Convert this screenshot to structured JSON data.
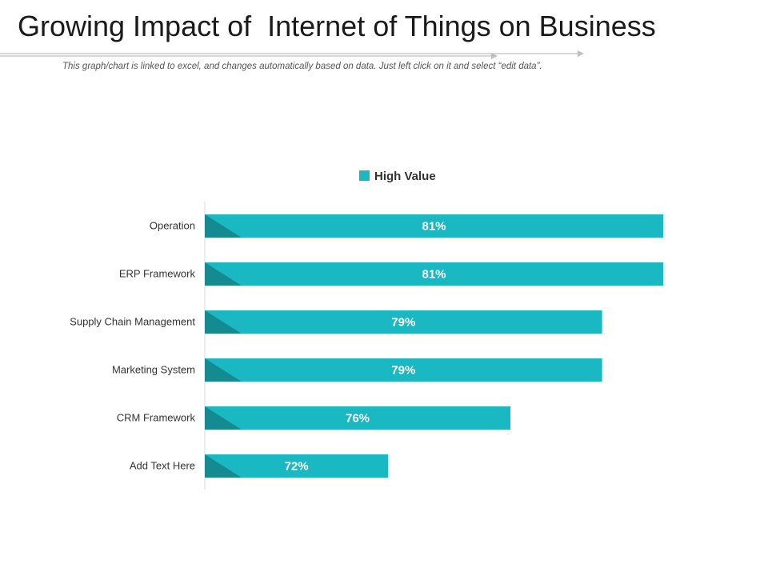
{
  "slide": {
    "title": "Growing Impact of  Internet of Things on Business",
    "subtitle": "This graph/chart is linked to excel, and changes automatically based on data. Just left click on it and select “edit data”."
  },
  "colors": {
    "bar": "#1ab8c2",
    "bar_shade": "#148a91",
    "axis": "#d9d9d9",
    "rule": "#bfbfbf"
  },
  "chart_data": {
    "type": "bar",
    "orientation": "horizontal",
    "title": "",
    "xlabel": "",
    "ylabel": "",
    "legend": {
      "position": "top",
      "entries": [
        "High Value"
      ]
    },
    "categories": [
      "Operation",
      "ERP Framework",
      "Supply Chain Management",
      "Marketing System",
      "CRM Framework",
      "Add Text Here"
    ],
    "series": [
      {
        "name": "High Value",
        "values": [
          81,
          81,
          79,
          79,
          76,
          72
        ]
      }
    ],
    "data_labels": [
      "81%",
      "81%",
      "79%",
      "79%",
      "76%",
      "72%"
    ],
    "value_format": "percent",
    "xlim": [
      66,
      81
    ],
    "grid": false
  }
}
